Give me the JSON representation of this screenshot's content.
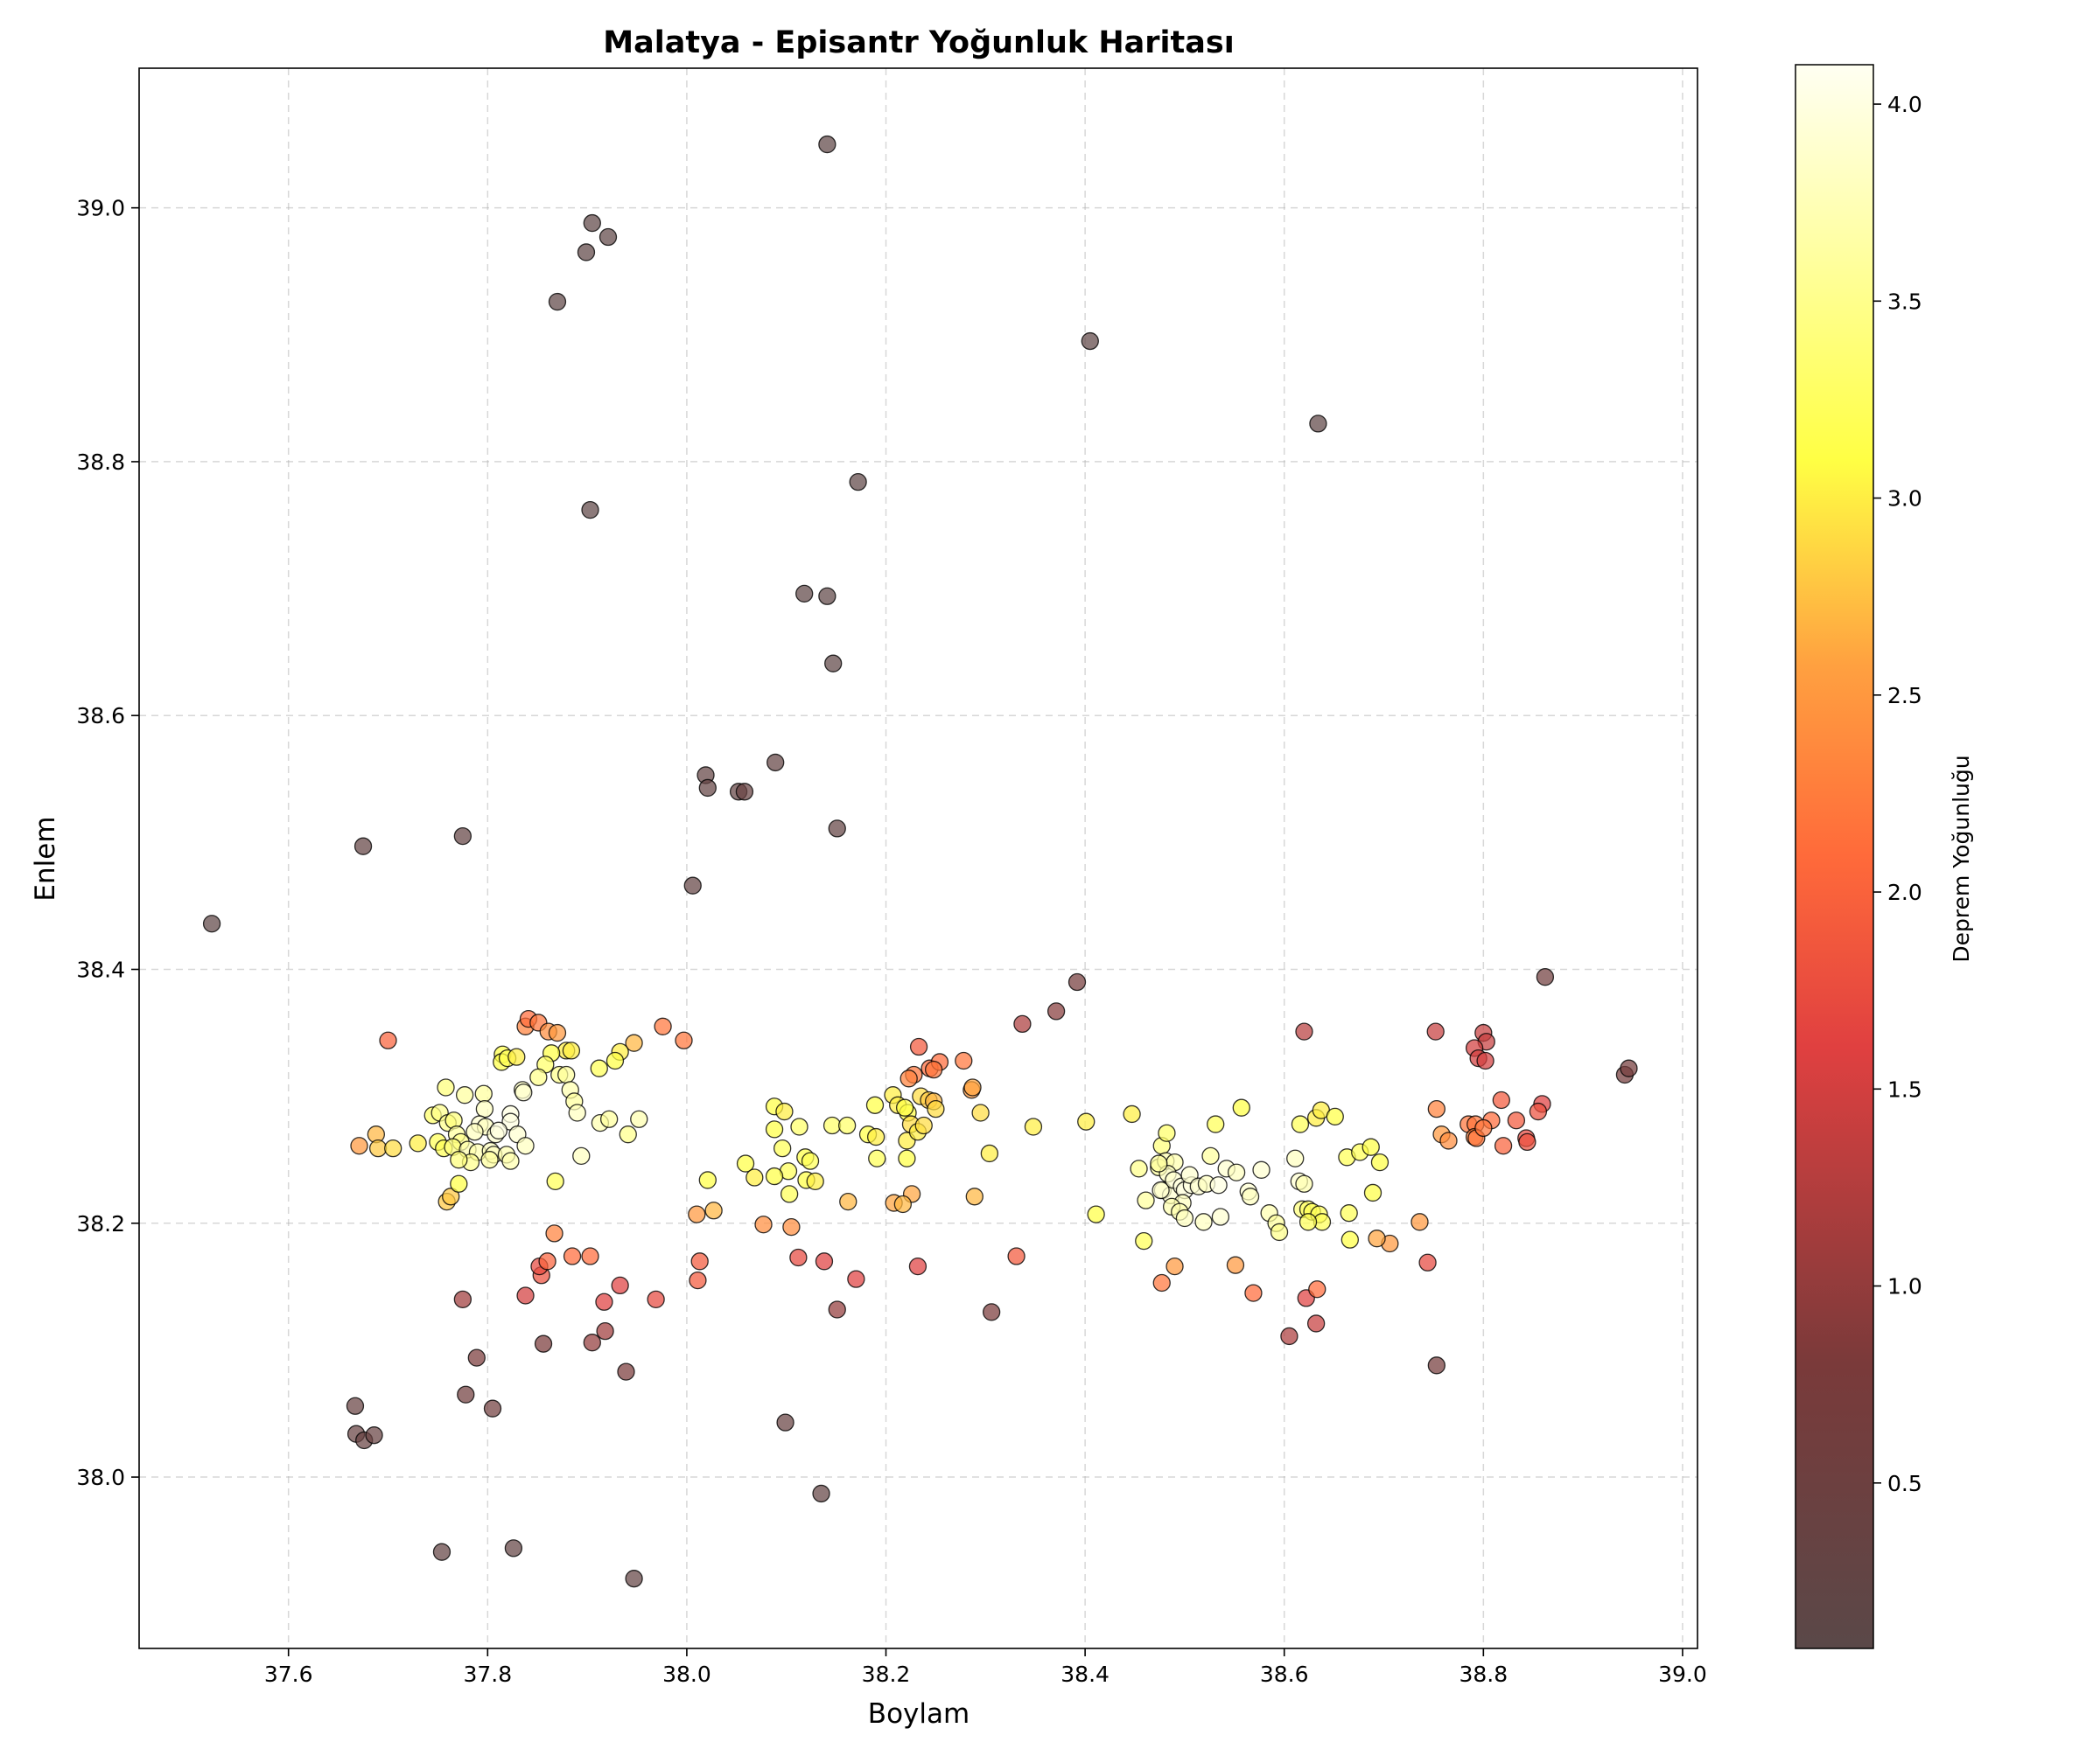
{
  "chart_data": {
    "type": "scatter",
    "title": "Malatya - Episantr Yoğunluk Haritası",
    "xlabel": "Boylam",
    "ylabel": "Enlem",
    "xlim": [
      37.45,
      39.015
    ],
    "ylim": [
      37.865,
      39.11
    ],
    "xticks": [
      37.6,
      37.8,
      38.0,
      38.2,
      38.4,
      38.6,
      38.8,
      39.0
    ],
    "yticks": [
      38.0,
      38.2,
      38.4,
      38.6,
      38.8,
      39.0
    ],
    "grid": true,
    "colorbar": {
      "label": "Deprem Yoğunluğu",
      "range": [
        0.08,
        4.1
      ],
      "ticks": [
        0.5,
        1.0,
        1.5,
        2.0,
        2.5,
        3.0,
        3.5,
        4.0
      ],
      "colormap": "hot",
      "colors": {
        "dark": "#5e1f1f",
        "red": "#ff2a2a",
        "orange": "#ff8a2a",
        "yellow": "#ffff2a",
        "white": "#ffffff"
      }
    },
    "points": [
      [
        37.523,
        38.436,
        0.2
      ],
      [
        37.675,
        38.497,
        0.3
      ],
      [
        37.775,
        38.505,
        0.3
      ],
      [
        37.87,
        38.926,
        0.2
      ],
      [
        37.899,
        38.965,
        0.2
      ],
      [
        37.905,
        38.988,
        0.2
      ],
      [
        37.921,
        38.977,
        0.2
      ],
      [
        37.903,
        38.762,
        0.2
      ],
      [
        38.141,
        39.05,
        0.2
      ],
      [
        38.172,
        38.784,
        0.2
      ],
      [
        38.118,
        38.696,
        0.2
      ],
      [
        38.141,
        38.694,
        0.2
      ],
      [
        38.147,
        38.641,
        0.2
      ],
      [
        38.151,
        38.511,
        0.3
      ],
      [
        38.089,
        38.563,
        0.3
      ],
      [
        38.019,
        38.553,
        0.3
      ],
      [
        38.021,
        38.543,
        0.3
      ],
      [
        38.052,
        38.54,
        0.3
      ],
      [
        38.058,
        38.54,
        0.4
      ],
      [
        38.006,
        38.466,
        0.3
      ],
      [
        38.405,
        38.895,
        0.2
      ],
      [
        38.634,
        38.83,
        0.2
      ],
      [
        37.667,
        38.056,
        0.4
      ],
      [
        37.668,
        38.034,
        0.4
      ],
      [
        37.676,
        38.029,
        0.4
      ],
      [
        37.686,
        38.033,
        0.4
      ],
      [
        37.754,
        37.941,
        0.3
      ],
      [
        37.826,
        37.944,
        0.3
      ],
      [
        37.947,
        37.92,
        0.3
      ],
      [
        38.099,
        38.043,
        0.4
      ],
      [
        38.135,
        37.987,
        0.3
      ],
      [
        37.778,
        38.065,
        0.6
      ],
      [
        37.805,
        38.054,
        0.6
      ],
      [
        37.789,
        38.094,
        0.8
      ],
      [
        37.856,
        38.105,
        0.8
      ],
      [
        37.905,
        38.106,
        1.0
      ],
      [
        37.918,
        38.115,
        1.1
      ],
      [
        37.939,
        38.083,
        0.8
      ],
      [
        37.775,
        38.14,
        1.1
      ],
      [
        37.838,
        38.143,
        1.5
      ],
      [
        37.917,
        38.138,
        1.6
      ],
      [
        37.933,
        38.151,
        1.6
      ],
      [
        37.969,
        38.14,
        1.7
      ],
      [
        37.854,
        38.159,
        1.8
      ],
      [
        37.852,
        38.166,
        1.7
      ],
      [
        37.86,
        38.17,
        2.0
      ],
      [
        37.885,
        38.174,
        2.1
      ],
      [
        37.903,
        38.174,
        2.1
      ],
      [
        37.867,
        38.192,
        2.3
      ],
      [
        38.011,
        38.155,
        1.9
      ],
      [
        38.013,
        38.17,
        1.9
      ],
      [
        38.112,
        38.173,
        1.7
      ],
      [
        38.138,
        38.17,
        1.6
      ],
      [
        38.151,
        38.132,
        1.0
      ],
      [
        38.17,
        38.156,
        1.6
      ],
      [
        38.232,
        38.166,
        1.6
      ],
      [
        38.306,
        38.13,
        0.8
      ],
      [
        38.331,
        38.174,
        1.9
      ],
      [
        38.077,
        38.199,
        2.4
      ],
      [
        38.105,
        38.197,
        2.4
      ],
      [
        38.01,
        38.207,
        2.5
      ],
      [
        38.027,
        38.21,
        2.7
      ],
      [
        38.337,
        38.357,
        1.2
      ],
      [
        38.371,
        38.367,
        0.9
      ],
      [
        38.392,
        38.39,
        0.7
      ],
      [
        38.477,
        38.153,
        2.2
      ],
      [
        38.49,
        38.166,
        2.5
      ],
      [
        38.551,
        38.167,
        2.5
      ],
      [
        38.569,
        38.145,
        2.1
      ],
      [
        38.605,
        38.111,
        1.2
      ],
      [
        38.622,
        38.141,
        1.6
      ],
      [
        38.632,
        38.121,
        1.4
      ],
      [
        38.633,
        38.148,
        2.1
      ],
      [
        38.62,
        38.351,
        1.3
      ],
      [
        38.736,
        38.201,
        2.5
      ],
      [
        38.706,
        38.184,
        2.5
      ],
      [
        38.693,
        38.188,
        2.6
      ],
      [
        38.744,
        38.169,
        1.7
      ],
      [
        38.753,
        38.088,
        0.7
      ],
      [
        38.752,
        38.351,
        1.4
      ],
      [
        38.862,
        38.394,
        0.6
      ],
      [
        38.942,
        38.317,
        0.7
      ],
      [
        38.946,
        38.322,
        0.7
      ],
      [
        38.8,
        38.35,
        1.4
      ],
      [
        38.803,
        38.343,
        1.4
      ],
      [
        38.791,
        38.338,
        1.5
      ],
      [
        38.795,
        38.33,
        1.5
      ],
      [
        38.802,
        38.328,
        1.5
      ],
      [
        38.859,
        38.294,
        1.6
      ],
      [
        38.855,
        38.288,
        1.8
      ],
      [
        38.843,
        38.267,
        1.7
      ],
      [
        38.844,
        38.264,
        1.8
      ],
      [
        38.833,
        38.281,
        1.9
      ],
      [
        38.818,
        38.297,
        1.9
      ],
      [
        38.82,
        38.261,
        2.0
      ],
      [
        38.808,
        38.281,
        2.1
      ],
      [
        38.785,
        38.278,
        2.2
      ],
      [
        38.792,
        38.278,
        2.2
      ],
      [
        38.791,
        38.268,
        2.3
      ],
      [
        38.793,
        38.267,
        2.2
      ],
      [
        38.8,
        38.275,
        2.2
      ],
      [
        38.753,
        38.29,
        2.3
      ],
      [
        38.758,
        38.27,
        2.5
      ],
      [
        38.765,
        38.265,
        2.4
      ],
      [
        37.7,
        38.344,
        2.0
      ],
      [
        37.671,
        38.261,
        2.5
      ],
      [
        37.688,
        38.27,
        2.7
      ],
      [
        37.69,
        38.259,
        2.8
      ],
      [
        37.705,
        38.259,
        2.9
      ],
      [
        37.73,
        38.263,
        3.0
      ],
      [
        37.759,
        38.217,
        2.8
      ],
      [
        37.763,
        38.221,
        2.8
      ],
      [
        37.771,
        38.231,
        3.1
      ],
      [
        37.976,
        38.355,
        2.2
      ],
      [
        37.997,
        38.344,
        2.2
      ],
      [
        37.838,
        38.355,
        2.3
      ],
      [
        37.841,
        38.361,
        2.1
      ],
      [
        37.851,
        38.358,
        2.2
      ],
      [
        37.861,
        38.351,
        2.4
      ],
      [
        37.87,
        38.35,
        2.5
      ],
      [
        37.879,
        38.336,
        3.0
      ],
      [
        37.884,
        38.336,
        3.0
      ],
      [
        37.864,
        38.334,
        3.1
      ],
      [
        37.815,
        38.333,
        3.1
      ],
      [
        37.814,
        38.327,
        3.1
      ],
      [
        37.82,
        38.33,
        3.2
      ],
      [
        37.829,
        38.331,
        3.0
      ],
      [
        37.947,
        38.342,
        2.7
      ],
      [
        37.933,
        38.335,
        3.0
      ],
      [
        37.928,
        38.328,
        3.1
      ],
      [
        37.912,
        38.322,
        3.2
      ],
      [
        37.858,
        38.325,
        3.3
      ],
      [
        37.851,
        38.315,
        3.5
      ],
      [
        37.872,
        38.317,
        3.5
      ],
      [
        37.879,
        38.317,
        3.6
      ],
      [
        37.835,
        38.305,
        3.8
      ],
      [
        37.836,
        38.303,
        3.9
      ],
      [
        37.883,
        38.305,
        3.7
      ],
      [
        37.887,
        38.296,
        3.6
      ],
      [
        37.89,
        38.287,
        3.8
      ],
      [
        37.894,
        38.253,
        3.8
      ],
      [
        37.913,
        38.279,
        3.7
      ],
      [
        37.922,
        38.282,
        3.6
      ],
      [
        37.941,
        38.27,
        3.5
      ],
      [
        37.952,
        38.282,
        3.7
      ],
      [
        37.868,
        38.233,
        3.2
      ],
      [
        37.758,
        38.307,
        3.4
      ],
      [
        37.777,
        38.301,
        3.6
      ],
      [
        37.796,
        38.302,
        3.6
      ],
      [
        37.745,
        38.285,
        3.3
      ],
      [
        37.752,
        38.287,
        3.5
      ],
      [
        37.76,
        38.279,
        3.5
      ],
      [
        37.766,
        38.281,
        3.4
      ],
      [
        37.797,
        38.29,
        3.8
      ],
      [
        37.823,
        38.286,
        4.0
      ],
      [
        37.823,
        38.28,
        4.0
      ],
      [
        37.792,
        38.278,
        3.9
      ],
      [
        37.798,
        38.276,
        3.8
      ],
      [
        37.787,
        38.272,
        3.8
      ],
      [
        37.808,
        38.27,
        3.9
      ],
      [
        37.83,
        38.27,
        3.9
      ],
      [
        37.811,
        38.273,
        4.0
      ],
      [
        37.769,
        38.27,
        3.6
      ],
      [
        37.773,
        38.264,
        3.5
      ],
      [
        37.75,
        38.264,
        3.2
      ],
      [
        37.756,
        38.259,
        3.2
      ],
      [
        37.765,
        38.26,
        3.4
      ],
      [
        37.78,
        38.258,
        3.7
      ],
      [
        37.79,
        38.256,
        3.7
      ],
      [
        37.803,
        38.257,
        3.8
      ],
      [
        37.806,
        38.254,
        3.8
      ],
      [
        37.819,
        38.254,
        3.7
      ],
      [
        37.823,
        38.249,
        3.7
      ],
      [
        37.838,
        38.261,
        3.8
      ],
      [
        37.802,
        38.25,
        3.6
      ],
      [
        37.783,
        38.248,
        3.5
      ],
      [
        37.771,
        38.25,
        3.4
      ],
      [
        38.088,
        38.292,
        3.1
      ],
      [
        38.098,
        38.288,
        3.0
      ],
      [
        38.113,
        38.276,
        3.3
      ],
      [
        38.088,
        38.274,
        3.1
      ],
      [
        38.146,
        38.277,
        3.3
      ],
      [
        38.161,
        38.277,
        3.3
      ],
      [
        38.096,
        38.259,
        3.2
      ],
      [
        38.059,
        38.247,
        3.1
      ],
      [
        38.102,
        38.241,
        3.2
      ],
      [
        38.119,
        38.252,
        3.1
      ],
      [
        38.124,
        38.249,
        3.2
      ],
      [
        38.088,
        38.237,
        3.1
      ],
      [
        38.068,
        38.236,
        3.0
      ],
      [
        38.12,
        38.234,
        3.1
      ],
      [
        38.129,
        38.233,
        3.0
      ],
      [
        38.021,
        38.234,
        3.1
      ],
      [
        38.103,
        38.223,
        3.2
      ],
      [
        38.162,
        38.217,
        2.7
      ],
      [
        38.182,
        38.27,
        3.1
      ],
      [
        38.189,
        38.293,
        3.1
      ],
      [
        38.19,
        38.268,
        3.0
      ],
      [
        38.191,
        38.251,
        3.2
      ],
      [
        38.207,
        38.301,
        3.0
      ],
      [
        38.212,
        38.293,
        3.0
      ],
      [
        38.222,
        38.287,
        3.1
      ],
      [
        38.219,
        38.291,
        3.1
      ],
      [
        38.221,
        38.251,
        3.1
      ],
      [
        38.225,
        38.278,
        2.9
      ],
      [
        38.221,
        38.265,
        3.0
      ],
      [
        38.232,
        38.272,
        3.0
      ],
      [
        38.238,
        38.277,
        2.9
      ],
      [
        38.235,
        38.3,
        2.9
      ],
      [
        38.243,
        38.297,
        2.8
      ],
      [
        38.248,
        38.296,
        2.7
      ],
      [
        38.25,
        38.29,
        2.9
      ],
      [
        38.233,
        38.339,
        1.9
      ],
      [
        38.228,
        38.317,
        2.2
      ],
      [
        38.223,
        38.314,
        2.3
      ],
      [
        38.244,
        38.322,
        2.1
      ],
      [
        38.254,
        38.327,
        2.1
      ],
      [
        38.248,
        38.321,
        2.2
      ],
      [
        38.278,
        38.328,
        2.2
      ],
      [
        38.286,
        38.305,
        2.5
      ],
      [
        38.287,
        38.307,
        2.6
      ],
      [
        38.295,
        38.287,
        2.9
      ],
      [
        38.304,
        38.255,
        3.0
      ],
      [
        38.289,
        38.221,
        2.7
      ],
      [
        38.226,
        38.223,
        2.6
      ],
      [
        38.208,
        38.216,
        2.6
      ],
      [
        38.217,
        38.215,
        2.7
      ],
      [
        38.348,
        38.276,
        3.0
      ],
      [
        38.401,
        38.28,
        3.0
      ],
      [
        38.411,
        38.207,
        3.1
      ],
      [
        38.447,
        38.286,
        3.0
      ],
      [
        38.454,
        38.243,
        3.5
      ],
      [
        38.461,
        38.218,
        3.6
      ],
      [
        38.474,
        38.244,
        3.6
      ],
      [
        38.477,
        38.261,
        3.4
      ],
      [
        38.482,
        38.271,
        3.3
      ],
      [
        38.481,
        38.249,
        3.7
      ],
      [
        38.49,
        38.248,
        3.7
      ],
      [
        38.483,
        38.239,
        3.8
      ],
      [
        38.478,
        38.226,
        3.8
      ],
      [
        38.486,
        38.222,
        3.9
      ],
      [
        38.489,
        38.234,
        3.9
      ],
      [
        38.497,
        38.229,
        4.0
      ],
      [
        38.5,
        38.226,
        4.0
      ],
      [
        38.507,
        38.23,
        4.0
      ],
      [
        38.505,
        38.238,
        3.9
      ],
      [
        38.514,
        38.229,
        3.9
      ],
      [
        38.522,
        38.231,
        3.8
      ],
      [
        38.526,
        38.253,
        3.6
      ],
      [
        38.534,
        38.23,
        4.0
      ],
      [
        38.542,
        38.243,
        3.9
      ],
      [
        38.552,
        38.24,
        3.8
      ],
      [
        38.564,
        38.225,
        3.9
      ],
      [
        38.566,
        38.221,
        3.8
      ],
      [
        38.577,
        38.242,
        3.9
      ],
      [
        38.531,
        38.278,
        3.2
      ],
      [
        38.557,
        38.291,
        3.1
      ],
      [
        38.498,
        38.216,
        3.8
      ],
      [
        38.487,
        38.213,
        3.7
      ],
      [
        38.495,
        38.209,
        3.7
      ],
      [
        38.5,
        38.204,
        3.8
      ],
      [
        38.519,
        38.201,
        3.8
      ],
      [
        38.536,
        38.205,
        3.9
      ],
      [
        38.585,
        38.208,
        3.7
      ],
      [
        38.592,
        38.2,
        3.6
      ],
      [
        38.595,
        38.193,
        3.5
      ],
      [
        38.611,
        38.251,
        3.8
      ],
      [
        38.615,
        38.233,
        3.9
      ],
      [
        38.62,
        38.231,
        3.7
      ],
      [
        38.616,
        38.278,
        3.2
      ],
      [
        38.618,
        38.211,
        3.4
      ],
      [
        38.624,
        38.211,
        3.3
      ],
      [
        38.628,
        38.209,
        3.2
      ],
      [
        38.635,
        38.207,
        3.2
      ],
      [
        38.638,
        38.201,
        3.2
      ],
      [
        38.624,
        38.201,
        3.2
      ],
      [
        38.632,
        38.283,
        3.0
      ],
      [
        38.637,
        38.289,
        3.0
      ],
      [
        38.651,
        38.284,
        3.1
      ],
      [
        38.663,
        38.252,
        3.2
      ],
      [
        38.676,
        38.256,
        3.2
      ],
      [
        38.687,
        38.26,
        3.1
      ],
      [
        38.696,
        38.248,
        3.1
      ],
      [
        38.689,
        38.224,
        3.1
      ],
      [
        38.665,
        38.208,
        3.2
      ],
      [
        38.666,
        38.187,
        3.1
      ],
      [
        38.459,
        38.186,
        3.2
      ],
      [
        38.474,
        38.247,
        3.6
      ],
      [
        38.476,
        38.226,
        3.9
      ]
    ]
  }
}
